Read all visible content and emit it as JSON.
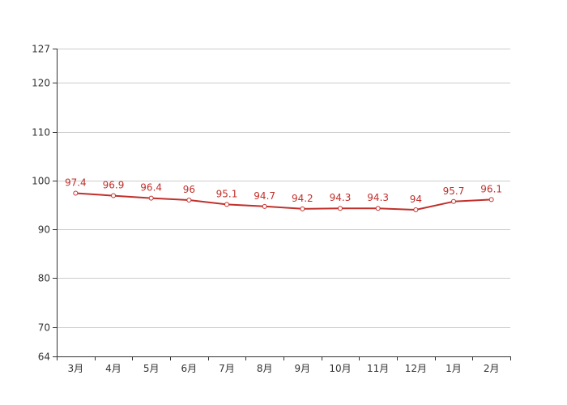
{
  "chart_data": {
    "type": "line",
    "categories": [
      "3月",
      "4月",
      "5月",
      "6月",
      "7月",
      "8月",
      "9月",
      "10月",
      "11月",
      "12月",
      "1月",
      "2月"
    ],
    "series": [
      {
        "values": [
          97.4,
          96.9,
          96.4,
          96,
          95.1,
          94.7,
          94.2,
          94.3,
          94.3,
          94,
          95.7,
          96.1
        ]
      }
    ],
    "ylim": [
      64,
      127
    ],
    "yticks": [
      64,
      70,
      80,
      90,
      100,
      110,
      120,
      127
    ],
    "grid": true,
    "title": "",
    "xlabel": "",
    "ylabel": "",
    "colors": {
      "line": "#c0302b",
      "label": "#c0302b",
      "grid": "#cccccc",
      "axis": "#333333",
      "marker_fill": "#ffffff"
    }
  }
}
